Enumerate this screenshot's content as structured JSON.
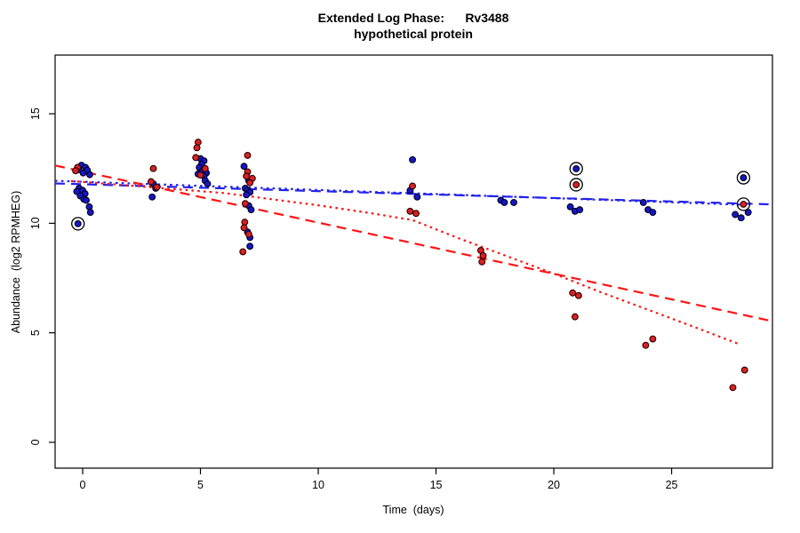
{
  "chart_data": {
    "type": "scatter",
    "title": "Extended Log Phase:      Rv3488",
    "subtitle": "hypothetical protein",
    "xlabel": "Time  (days)",
    "ylabel": "Abundance  (log2 RPMHEG)",
    "axis": {
      "xlim": [
        -1.17,
        29.28
      ],
      "ylim": [
        -1.18,
        17.68
      ],
      "xticks": [
        0,
        5,
        10,
        15,
        20,
        25
      ],
      "yticks": [
        0,
        5,
        10,
        15
      ],
      "grid": false,
      "box": true
    },
    "colors": {
      "blue_point_fill": "#1616c8",
      "blue_point_stroke": "#00001a",
      "red_point_fill": "#d92121",
      "red_point_stroke": "#2a0000",
      "blue_line": "#2222ee",
      "red_line": "#ff1414",
      "outlier_ring": "#000000",
      "axis_color": "#000000"
    },
    "series": [
      {
        "name": "blue-replicates",
        "marker": "circle",
        "color_key": "blue",
        "points": [
          [
            -0.05,
            12.65
          ],
          [
            0.12,
            12.55
          ],
          [
            -0.18,
            12.45
          ],
          [
            0.2,
            12.42
          ],
          [
            0.02,
            12.3
          ],
          [
            0.3,
            12.22
          ],
          [
            -0.15,
            11.6
          ],
          [
            0.0,
            11.5
          ],
          [
            -0.25,
            11.45
          ],
          [
            0.1,
            11.35
          ],
          [
            -0.1,
            11.25
          ],
          [
            0.05,
            11.1
          ],
          [
            0.15,
            11.05
          ],
          [
            0.28,
            10.75
          ],
          [
            0.33,
            10.5
          ],
          [
            3.0,
            11.8
          ],
          [
            3.1,
            11.6
          ],
          [
            2.95,
            11.2
          ],
          [
            5.0,
            12.95
          ],
          [
            5.15,
            12.85
          ],
          [
            5.05,
            12.7
          ],
          [
            4.95,
            12.55
          ],
          [
            5.1,
            12.4
          ],
          [
            5.25,
            12.3
          ],
          [
            4.9,
            12.25
          ],
          [
            5.15,
            12.15
          ],
          [
            5.2,
            11.95
          ],
          [
            5.3,
            11.8
          ],
          [
            6.85,
            12.6
          ],
          [
            7.05,
            11.95
          ],
          [
            6.9,
            11.6
          ],
          [
            7.0,
            11.5
          ],
          [
            7.1,
            11.42
          ],
          [
            6.95,
            11.3
          ],
          [
            7.05,
            10.8
          ],
          [
            7.15,
            10.62
          ],
          [
            7.0,
            9.6
          ],
          [
            7.1,
            9.35
          ],
          [
            7.1,
            8.95
          ],
          [
            14.0,
            12.9
          ],
          [
            13.9,
            11.5
          ],
          [
            14.2,
            11.2
          ],
          [
            17.75,
            11.05
          ],
          [
            17.9,
            10.95
          ],
          [
            18.3,
            10.95
          ],
          [
            20.7,
            10.75
          ],
          [
            20.9,
            10.55
          ],
          [
            21.1,
            10.62
          ],
          [
            23.8,
            10.95
          ],
          [
            24.0,
            10.62
          ],
          [
            24.2,
            10.5
          ],
          [
            27.7,
            10.4
          ],
          [
            27.95,
            10.25
          ],
          [
            28.25,
            10.5
          ]
        ]
      },
      {
        "name": "red-replicates",
        "marker": "circle",
        "color_key": "red",
        "points": [
          [
            -0.22,
            12.55
          ],
          [
            -0.3,
            12.4
          ],
          [
            3.0,
            12.5
          ],
          [
            2.9,
            11.9
          ],
          [
            3.15,
            11.65
          ],
          [
            4.9,
            13.7
          ],
          [
            4.85,
            13.45
          ],
          [
            4.8,
            13.0
          ],
          [
            5.2,
            12.5
          ],
          [
            5.0,
            12.2
          ],
          [
            7.0,
            13.1
          ],
          [
            7.0,
            12.35
          ],
          [
            6.95,
            12.15
          ],
          [
            7.2,
            12.05
          ],
          [
            7.1,
            11.85
          ],
          [
            6.9,
            10.9
          ],
          [
            6.88,
            10.05
          ],
          [
            6.85,
            9.8
          ],
          [
            7.05,
            9.5
          ],
          [
            6.8,
            8.7
          ],
          [
            14.0,
            11.7
          ],
          [
            13.9,
            10.55
          ],
          [
            14.15,
            10.45
          ],
          [
            16.9,
            8.76
          ],
          [
            17.0,
            8.52
          ],
          [
            16.95,
            8.24
          ],
          [
            20.8,
            6.82
          ],
          [
            21.05,
            6.7
          ],
          [
            20.9,
            5.73
          ],
          [
            23.9,
            4.43
          ],
          [
            24.2,
            4.72
          ],
          [
            28.1,
            3.3
          ],
          [
            27.6,
            2.5
          ]
        ]
      },
      {
        "name": "blue-outliers-circled",
        "marker": "circle-ringed",
        "color_key": "blue",
        "points": [
          [
            -0.2,
            9.98
          ],
          [
            20.95,
            12.49
          ],
          [
            28.05,
            12.08
          ]
        ]
      },
      {
        "name": "red-outliers-circled",
        "marker": "circle-ringed",
        "color_key": "red",
        "points": [
          [
            20.95,
            11.76
          ],
          [
            28.05,
            10.87
          ]
        ]
      }
    ],
    "trend_lines": [
      {
        "name": "blue-fit-dashed",
        "color_key": "blue",
        "style": "dashed",
        "points": [
          [
            -1.17,
            11.82
          ],
          [
            29.28,
            10.86
          ]
        ]
      },
      {
        "name": "blue-fit-dotted",
        "color_key": "blue",
        "style": "dotted",
        "points": [
          [
            -1.17,
            11.94
          ],
          [
            27.9,
            10.85
          ]
        ]
      },
      {
        "name": "red-fit-dashed",
        "color_key": "red",
        "style": "dashed",
        "points": [
          [
            -1.17,
            12.64
          ],
          [
            29.28,
            5.53
          ]
        ]
      },
      {
        "name": "red-fit-dotted",
        "color_key": "red",
        "style": "dotted",
        "points": [
          [
            -0.5,
            11.93
          ],
          [
            2,
            11.72
          ],
          [
            4,
            11.55
          ],
          [
            6,
            11.38
          ],
          [
            8,
            11.1
          ],
          [
            10,
            10.82
          ],
          [
            12,
            10.5
          ],
          [
            14,
            10.15
          ],
          [
            16,
            9.3
          ],
          [
            18,
            8.5
          ],
          [
            20,
            7.7
          ],
          [
            22,
            6.85
          ],
          [
            24,
            6.05
          ],
          [
            26,
            5.25
          ],
          [
            27.9,
            4.47
          ]
        ]
      }
    ]
  }
}
